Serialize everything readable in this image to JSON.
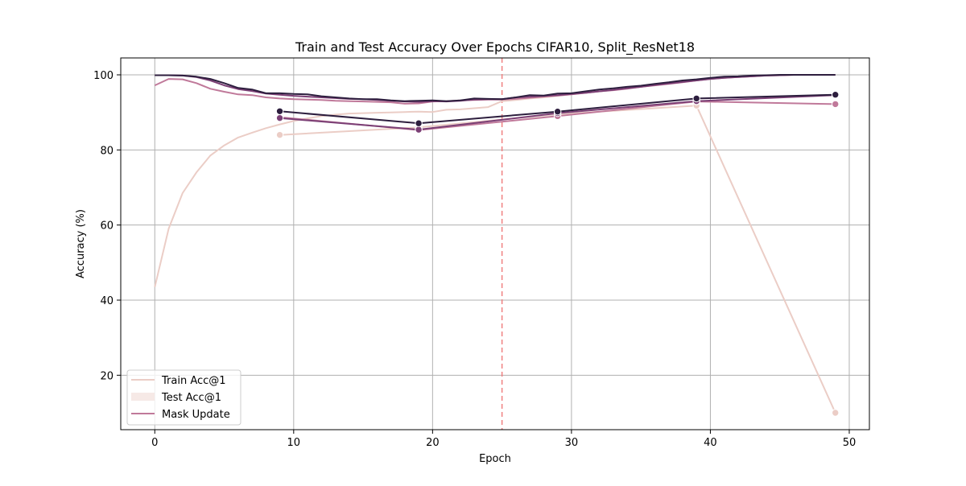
{
  "chart_data": {
    "type": "line",
    "title": "Train and Test Accuracy Over Epochs CIFAR10, Split_ResNet18",
    "xlabel": "Epoch",
    "ylabel": "Accuracy (%)",
    "xlim": [
      -2.45,
      51.45
    ],
    "ylim": [
      5.5,
      104.5
    ],
    "xticks": [
      0,
      10,
      20,
      30,
      40,
      50
    ],
    "yticks": [
      20,
      40,
      60,
      80,
      100
    ],
    "grid": true,
    "legend_position": "lower-left",
    "legend": [
      {
        "label": "Train Acc@1",
        "style": "line",
        "color": "#ebcdc6"
      },
      {
        "label": "Test Acc@1",
        "style": "patch",
        "color": "#f6e9e6"
      },
      {
        "label": "Mask Update",
        "style": "line",
        "color": "#c0799a"
      }
    ],
    "vline": {
      "x": 25,
      "color": "#f08080",
      "style": "dashed"
    },
    "train_series": [
      {
        "color": "#ebcdc6",
        "x": [
          0,
          1,
          2,
          3,
          4,
          5,
          6,
          7,
          8,
          9,
          10,
          11,
          12,
          13,
          14,
          15,
          16,
          17,
          18,
          19,
          20,
          21,
          22,
          23,
          24,
          25,
          26,
          27,
          28,
          29,
          30,
          31,
          32,
          33,
          34,
          35,
          36,
          37,
          38,
          39,
          40,
          41,
          42,
          43,
          44,
          45,
          46,
          47,
          48,
          49
        ],
        "y": [
          43.5,
          59,
          68.5,
          74,
          78.5,
          81.2,
          83.3,
          84.6,
          85.8,
          86.8,
          87.7,
          88.4,
          89,
          89.4,
          89.7,
          89.8,
          89.9,
          90,
          90.1,
          90.2,
          90.1,
          90.7,
          90.8,
          91.1,
          91.4,
          93,
          93.3,
          93.7,
          94,
          94.4,
          94.8,
          95.2,
          95.6,
          96,
          96.4,
          96.8,
          97.3,
          97.8,
          98.3,
          98.7,
          99,
          99.3,
          99.5,
          99.7,
          99.8,
          99.9,
          100,
          100,
          100,
          100
        ]
      },
      {
        "color": "#c0799a",
        "x": [
          0,
          1,
          2,
          3,
          4,
          5,
          6,
          7,
          8,
          9,
          10,
          11,
          12,
          13,
          14,
          15,
          16,
          17,
          18,
          19,
          20,
          21,
          22,
          23,
          24,
          25,
          26,
          27,
          28,
          29,
          30,
          31,
          32,
          33,
          34,
          35,
          36,
          37,
          38,
          39,
          40,
          41,
          42,
          43,
          44,
          45,
          46,
          47,
          48,
          49
        ],
        "y": [
          97.2,
          98.9,
          98.8,
          97.8,
          96.3,
          95.5,
          94.8,
          94.6,
          94,
          93.7,
          93.5,
          93.4,
          93.3,
          93.1,
          93,
          92.9,
          92.8,
          92.7,
          92.3,
          92.4,
          92.9,
          93,
          93.2,
          93.3,
          93.4,
          93.4,
          93.6,
          93.9,
          94.2,
          94.5,
          94.8,
          95.2,
          95.6,
          95.9,
          96.3,
          96.8,
          97.2,
          97.6,
          98,
          98.5,
          98.9,
          99.2,
          99.4,
          99.6,
          99.8,
          99.9,
          100,
          100,
          100,
          100
        ]
      },
      {
        "color": "#7b3f75",
        "x": [
          0,
          1,
          2,
          3,
          4,
          5,
          6,
          7,
          8,
          9,
          10,
          11,
          12,
          13,
          14,
          15,
          16,
          17,
          18,
          19,
          20,
          21,
          22,
          23,
          24,
          25,
          26,
          27,
          28,
          29,
          30,
          31,
          32,
          33,
          34,
          35,
          36,
          37,
          38,
          39,
          40,
          41,
          42,
          43,
          44,
          45,
          46,
          47,
          48,
          49
        ],
        "y": [
          99.9,
          99.9,
          99.8,
          99.4,
          98.5,
          97.2,
          96.2,
          95.7,
          95,
          94.7,
          94.4,
          94.2,
          94,
          93.8,
          93.6,
          93.5,
          93.3,
          93.1,
          92.9,
          92.8,
          93,
          92.9,
          93.1,
          93.4,
          93.5,
          93.5,
          94,
          94.2,
          94.4,
          94.6,
          94.9,
          95.2,
          95.6,
          96,
          96.4,
          96.8,
          97.3,
          97.7,
          98.1,
          98.5,
          98.9,
          99.2,
          99.4,
          99.6,
          99.8,
          99.9,
          100,
          100,
          100,
          100
        ]
      },
      {
        "color": "#2d1e3e",
        "x": [
          0,
          1,
          2,
          3,
          4,
          5,
          6,
          7,
          8,
          9,
          10,
          11,
          12,
          13,
          14,
          15,
          16,
          17,
          18,
          19,
          20,
          21,
          22,
          23,
          24,
          25,
          26,
          27,
          28,
          29,
          30,
          31,
          32,
          33,
          34,
          35,
          36,
          37,
          38,
          39,
          40,
          41,
          42,
          43,
          44,
          45,
          46,
          47,
          48,
          49
        ],
        "y": [
          99.9,
          99.9,
          99.8,
          99.5,
          98.9,
          97.8,
          96.5,
          96.1,
          95.1,
          95.1,
          94.9,
          94.8,
          94.3,
          94,
          93.7,
          93.5,
          93.5,
          93.2,
          93,
          93.1,
          93.2,
          93,
          93.2,
          93.7,
          93.6,
          93.5,
          94,
          94.6,
          94.5,
          95,
          95.1,
          95.6,
          96.1,
          96.4,
          96.8,
          97.1,
          97.6,
          98,
          98.5,
          98.8,
          99.2,
          99.5,
          99.6,
          99.8,
          99.9,
          100,
          100,
          100,
          100,
          100
        ]
      }
    ],
    "test_series": [
      {
        "color": "#ebcdc6",
        "x": [
          9,
          19,
          29,
          39,
          49
        ],
        "y": [
          84,
          86,
          89.5,
          91.8,
          10
        ]
      },
      {
        "color": "#c0799a",
        "x": [
          9,
          19,
          29,
          39,
          49
        ],
        "y": [
          88.7,
          85.3,
          89,
          92.9,
          92.2
        ]
      },
      {
        "color": "#7b3f75",
        "x": [
          9,
          19,
          29,
          39,
          49
        ],
        "y": [
          88.5,
          85.4,
          89.8,
          93,
          94.6
        ]
      },
      {
        "color": "#2d1e3e",
        "x": [
          9,
          19,
          29,
          39,
          49
        ],
        "y": [
          90.3,
          87.1,
          90.2,
          93.7,
          94.7
        ]
      }
    ]
  }
}
